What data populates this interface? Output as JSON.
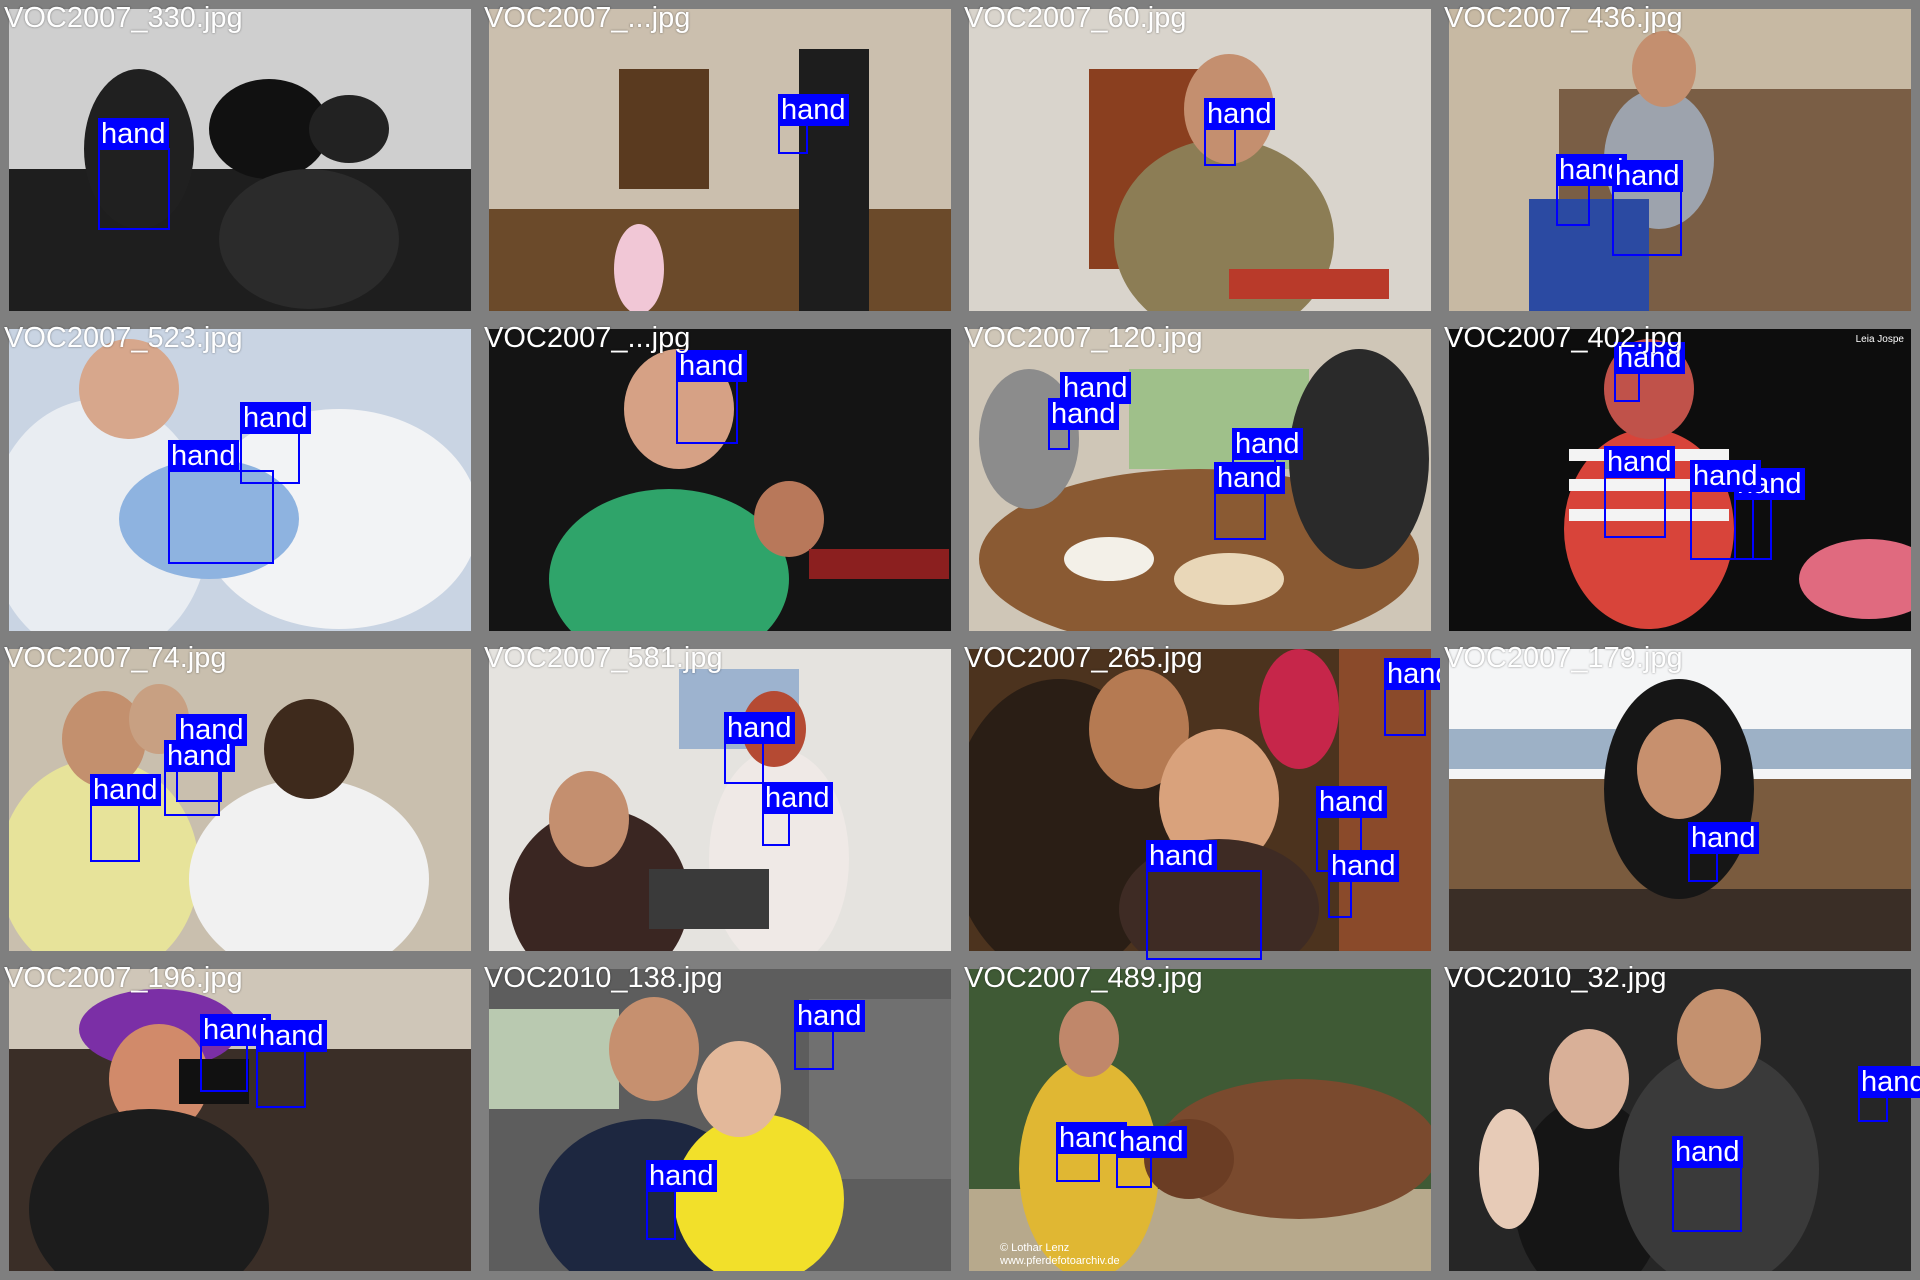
{
  "tiles": [
    {
      "filename": "VOC2007_330.jpg",
      "bg": "#3b3b3b",
      "detections": [
        "hand"
      ]
    },
    {
      "filename": "VOC2007_...jpg",
      "bg": "#8a7356",
      "detections": [
        "hand"
      ]
    },
    {
      "filename": "VOC2007_60.jpg",
      "bg": "#9c8f7a",
      "detections": [
        "hand"
      ]
    },
    {
      "filename": "VOC2007_436.jpg",
      "bg": "#8c7a62",
      "detections": [
        "hand",
        "hand"
      ]
    },
    {
      "filename": "VOC2007_523.jpg",
      "bg": "#a7b7cf",
      "detections": [
        "hand",
        "hand"
      ]
    },
    {
      "filename": "VOC2007_...jpg",
      "bg": "#1a1a1a",
      "detections": [
        "hand"
      ]
    },
    {
      "filename": "VOC2007_120.jpg",
      "bg": "#7e5a3c",
      "detections": [
        "hand",
        "hand",
        "hand",
        "hand"
      ]
    },
    {
      "filename": "VOC2007_402.jpg",
      "bg": "#0f0f0f",
      "detections": [
        "hand",
        "hand",
        "hand",
        "hand"
      ]
    },
    {
      "filename": "VOC2007_74.jpg",
      "bg": "#b9a887",
      "detections": [
        "hand",
        "hand",
        "hand"
      ]
    },
    {
      "filename": "VOC2007_581.jpg",
      "bg": "#b9b4ad",
      "detections": [
        "hand",
        "hand"
      ]
    },
    {
      "filename": "VOC2007_265.jpg",
      "bg": "#5a3b22",
      "detections": [
        "hand",
        "hand",
        "hand",
        "hand"
      ]
    },
    {
      "filename": "VOC2007_179.jpg",
      "bg": "#8a7a6e",
      "detections": [
        "hand"
      ]
    },
    {
      "filename": "VOC2007_196.jpg",
      "bg": "#2a2a2a",
      "detections": [
        "hand",
        "hand"
      ]
    },
    {
      "filename": "VOC2010_138.jpg",
      "bg": "#4a4a4a",
      "detections": [
        "hand",
        "hand"
      ]
    },
    {
      "filename": "VOC2007_489.jpg",
      "bg": "#6d6a4f",
      "detections": [
        "hand",
        "hand"
      ]
    },
    {
      "filename": "VOC2010_32.jpg",
      "bg": "#2b2b2b",
      "detections": [
        "hand",
        "hand"
      ]
    }
  ],
  "watermark": "© Lothar Lenz www.pferdefotoarchiv.de",
  "corner_credit": "Leia Jospe"
}
